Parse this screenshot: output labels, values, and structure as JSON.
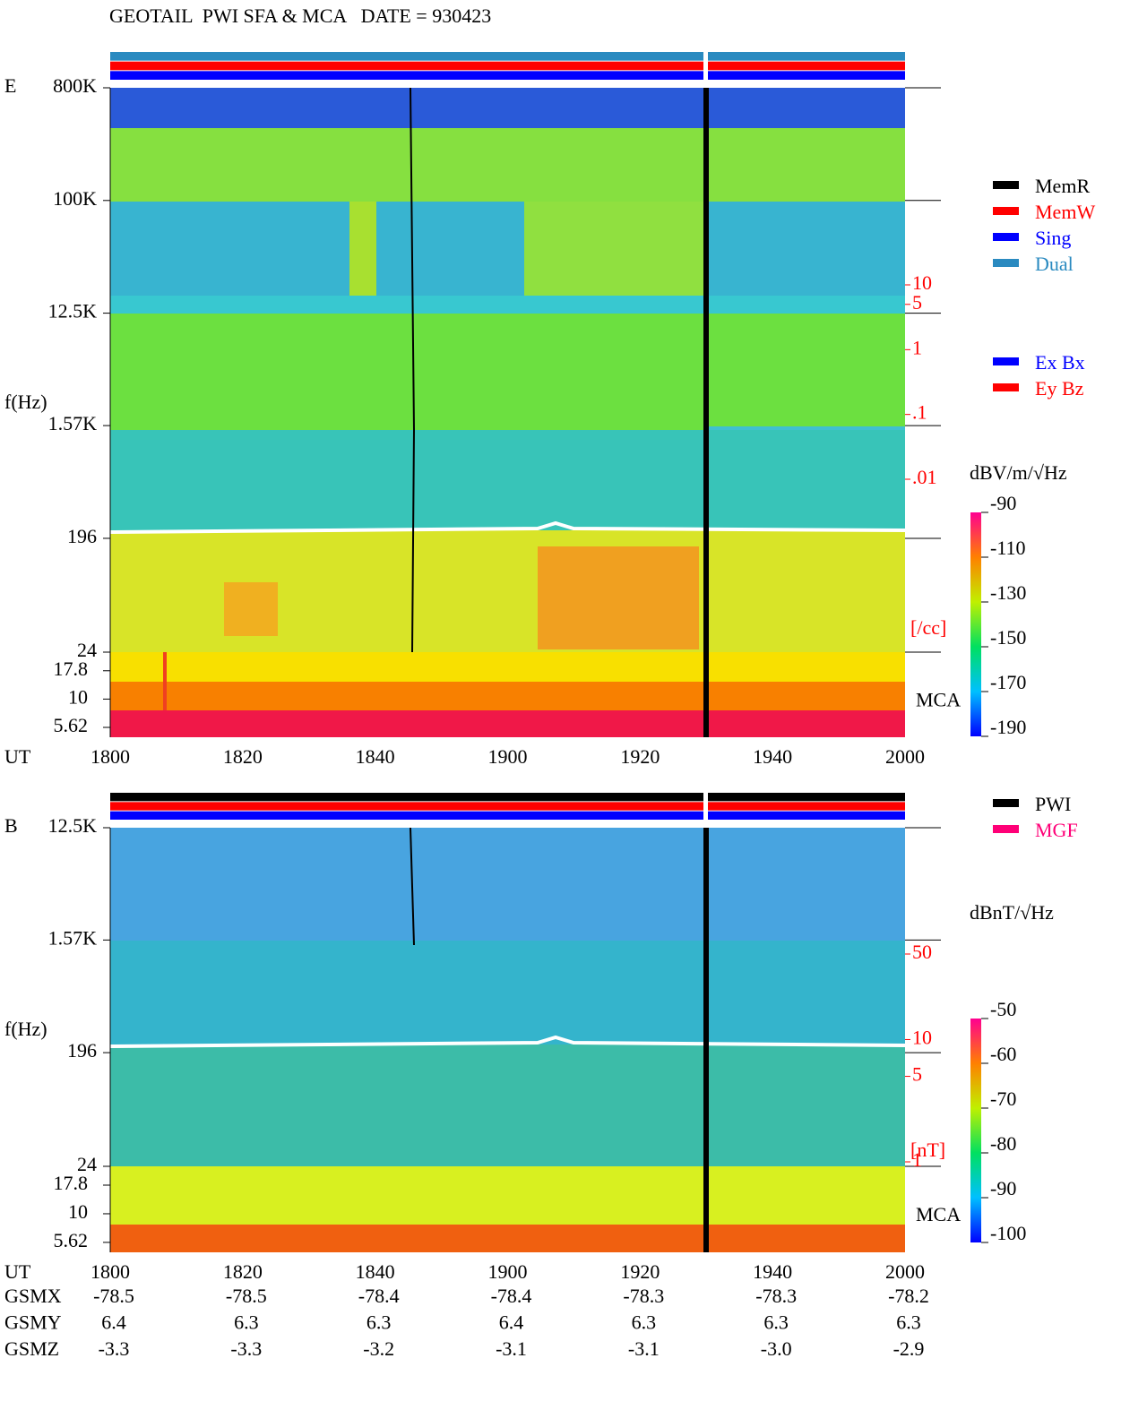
{
  "title": "GEOTAIL  PWI SFA & MCA   DATE = 930423",
  "chart_data": [
    {
      "type": "spectrogram",
      "panel_label": "E",
      "ylabel": "f(Hz)",
      "xlabel": "UT",
      "log_y": true,
      "categories": [
        "1800",
        "1820",
        "1840",
        "1900",
        "1920",
        "1940",
        "2000"
      ],
      "ylim": [
        24,
        800000
      ],
      "yticks": [
        {
          "value": 800000,
          "label": "800K"
        },
        {
          "value": 100000,
          "label": "100K"
        },
        {
          "value": 12500,
          "label": "12.5K"
        },
        {
          "value": 1570,
          "label": "1.57K"
        },
        196,
        24
      ],
      "mca_label": "MCA",
      "mca_ylim": [
        4.6,
        26
      ],
      "mca_yticks": [
        17.8,
        10,
        5.62
      ],
      "status_colors": [
        "#2a8ac0",
        "#ff0000",
        "#0000ff"
      ],
      "legend_groups": [
        [
          {
            "name": "MemR",
            "color": "#000000"
          },
          {
            "name": "MemW",
            "color": "#ff0000"
          },
          {
            "name": "Sing",
            "color": "#0000ff"
          },
          {
            "name": "Dual",
            "color": "#2a8ac0"
          }
        ],
        [
          {
            "name": "Ex Bx",
            "color": "#0000ff"
          },
          {
            "name": "Ey Bz",
            "color": "#ff0000"
          }
        ]
      ],
      "colorbar": {
        "label": "dBV/m/√Hz",
        "lim": [
          -190,
          -90
        ],
        "ticks": [
          -90,
          -110,
          -130,
          -150,
          -170,
          -190
        ]
      },
      "density_scale": {
        "unit": "[/cc]",
        "lim": [
          0.01,
          10
        ],
        "ticks": [
          10,
          5,
          1,
          {
            "value": 0.1,
            "label": ".1"
          },
          {
            "value": 0.01,
            "label": ".01"
          }
        ]
      }
    },
    {
      "type": "spectrogram",
      "panel_label": "B",
      "ylabel": "f(Hz)",
      "xlabel": "UT",
      "log_y": true,
      "categories": [
        "1800",
        "1820",
        "1840",
        "1900",
        "1920",
        "1940",
        "2000"
      ],
      "ylim": [
        24,
        12500
      ],
      "yticks": [
        {
          "value": 12500,
          "label": "12.5K"
        },
        {
          "value": 1570,
          "label": "1.57K"
        },
        196,
        24
      ],
      "mca_label": "MCA",
      "mca_ylim": [
        4.6,
        26
      ],
      "mca_yticks": [
        17.8,
        10,
        5.62
      ],
      "status_colors": [
        "#000000",
        "#ff0000",
        "#0000ff"
      ],
      "legend_groups": [
        [
          {
            "name": "PWI",
            "color": "#000000"
          },
          {
            "name": "MGF",
            "color": "#ff0077"
          }
        ]
      ],
      "colorbar": {
        "label": "dBnT/√Hz",
        "lim": [
          -100,
          -50
        ],
        "ticks": [
          -50,
          -60,
          -70,
          -80,
          -90,
          -100
        ]
      },
      "density_scale": {
        "unit": "[nT]",
        "lim": [
          1,
          50
        ],
        "ticks": [
          50,
          10,
          5,
          1
        ]
      }
    }
  ],
  "ephemeris": {
    "rows": [
      {
        "label": "GSMX",
        "values": [
          "-78.5",
          "-78.5",
          "-78.4",
          "-78.4",
          "-78.3",
          "-78.3",
          "-78.2"
        ]
      },
      {
        "label": "GSMY",
        "values": [
          "6.4",
          "6.3",
          "6.3",
          "6.4",
          "6.3",
          "6.3",
          "6.3"
        ]
      },
      {
        "label": "GSMZ",
        "values": [
          "-3.3",
          "-3.3",
          "-3.2",
          "-3.1",
          "-3.1",
          "-3.0",
          "-2.9"
        ]
      }
    ]
  }
}
